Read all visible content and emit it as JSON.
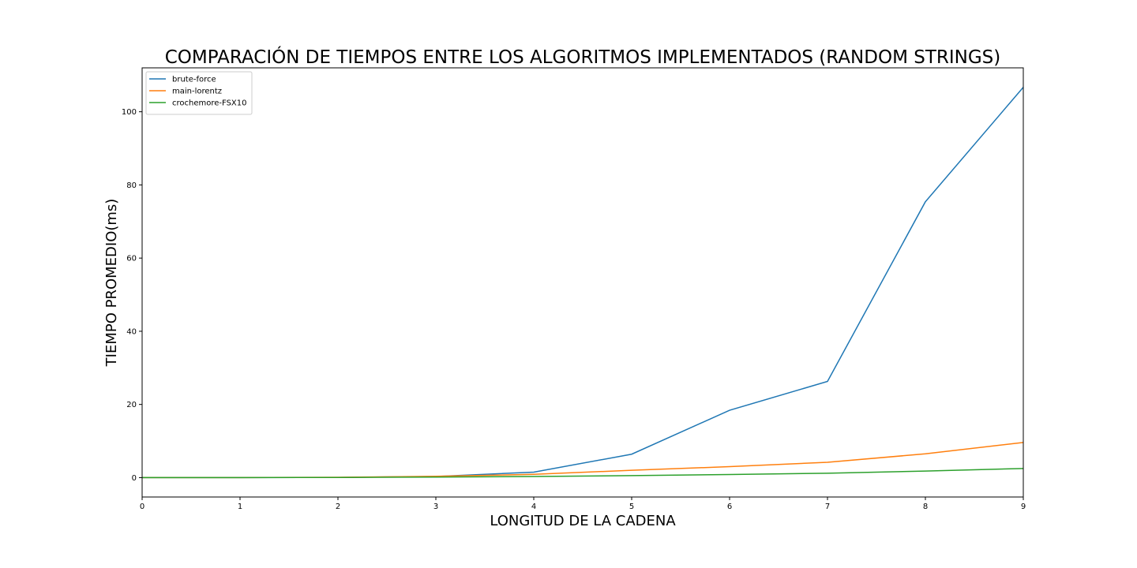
{
  "chart_data": {
    "type": "line",
    "title": "COMPARACIÓN DE TIEMPOS ENTRE LOS ALGORITMOS IMPLEMENTADOS (RANDOM STRINGS)",
    "xlabel": "LONGITUD DE LA CADENA",
    "ylabel": "TIEMPO PROMEDIO(ms)",
    "x": [
      0,
      1,
      2,
      3,
      4,
      5,
      6,
      7,
      8,
      9
    ],
    "xlim": [
      0,
      9
    ],
    "ylim": [
      -5.3,
      112
    ],
    "xticks": [
      0,
      1,
      2,
      3,
      4,
      5,
      6,
      7,
      8,
      9
    ],
    "yticks": [
      0,
      20,
      40,
      60,
      80,
      100
    ],
    "grid": false,
    "legend_position": "top-left",
    "series": [
      {
        "name": "brute-force",
        "color": "#1f77b4",
        "values": [
          0,
          0,
          0.05,
          0.3,
          1.5,
          6.4,
          18.4,
          26.3,
          75.4,
          106.7
        ]
      },
      {
        "name": "main-lorentz",
        "color": "#ff7f0e",
        "values": [
          0,
          0,
          0.1,
          0.35,
          0.9,
          2.0,
          3.0,
          4.2,
          6.5,
          9.6
        ]
      },
      {
        "name": "crochemore-FSX10",
        "color": "#2ca02c",
        "values": [
          0,
          0,
          0.05,
          0.15,
          0.3,
          0.55,
          0.85,
          1.2,
          1.8,
          2.5
        ]
      }
    ]
  }
}
